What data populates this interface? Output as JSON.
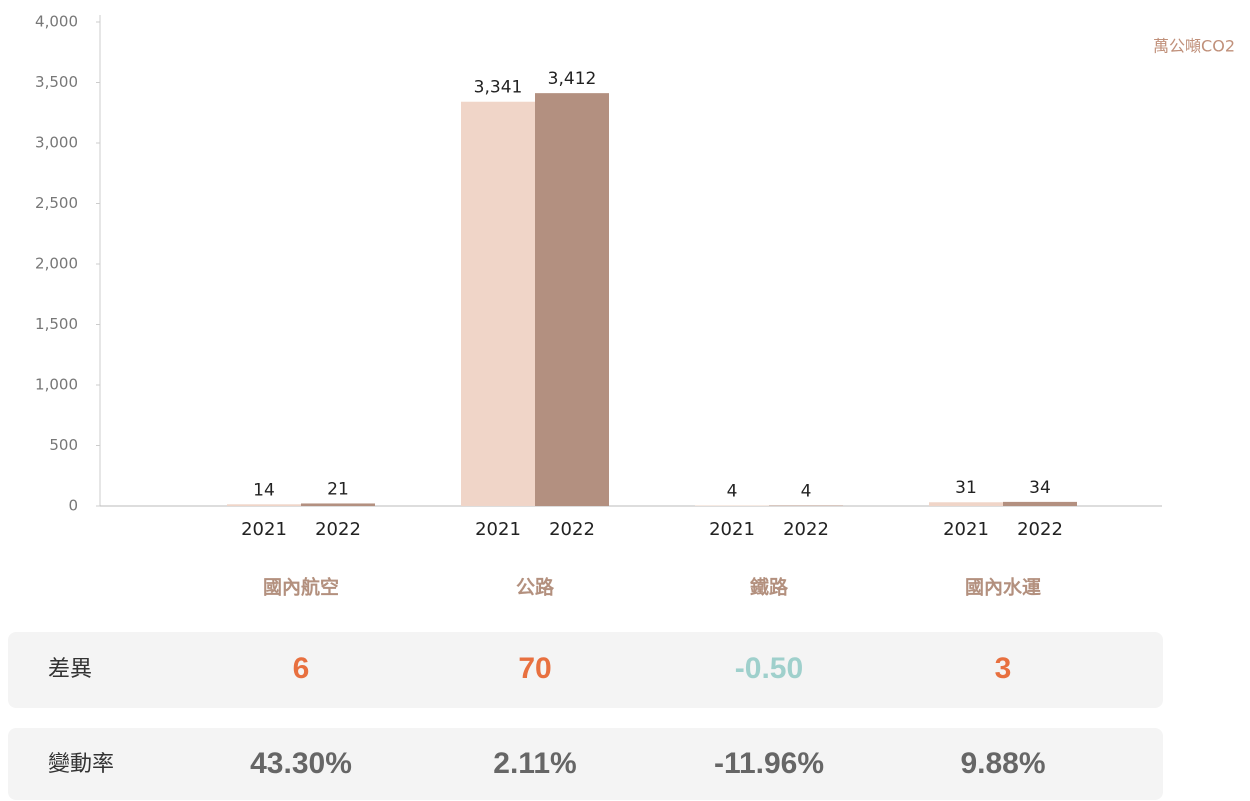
{
  "chart_data": {
    "type": "bar",
    "unit": "萬公噸CO2",
    "categories": [
      "國內航空",
      "公路",
      "鐵路",
      "國內水運"
    ],
    "series": [
      {
        "name": "2021",
        "color": "#f0d5c8",
        "values": [
          14,
          3341,
          4,
          31
        ],
        "value_labels": [
          "14",
          "3,341",
          "4",
          "31"
        ]
      },
      {
        "name": "2022",
        "color": "#b39080",
        "values": [
          21,
          3412,
          4,
          34
        ],
        "value_labels": [
          "21",
          "3,412",
          "4",
          "34"
        ]
      }
    ],
    "ylim": [
      0,
      4000
    ],
    "yticks": [
      0,
      500,
      {
        "value": 1000,
        "label": "1,000"
      },
      {
        "value": 1500,
        "label": "1,500"
      },
      {
        "value": 2000,
        "label": "2,000"
      },
      {
        "value": 2500,
        "label": "2,500"
      },
      {
        "value": 3000,
        "label": "3,000"
      },
      {
        "value": 3500,
        "label": "3,500"
      },
      {
        "value": 4000,
        "label": "4,000"
      }
    ],
    "grid": false
  },
  "table": {
    "rows": [
      [
        "差異",
        "6",
        "70",
        "-0.50",
        "3"
      ],
      [
        "變動率",
        "43.30%",
        "2.11%",
        "-11.96%",
        "9.88%"
      ]
    ]
  }
}
